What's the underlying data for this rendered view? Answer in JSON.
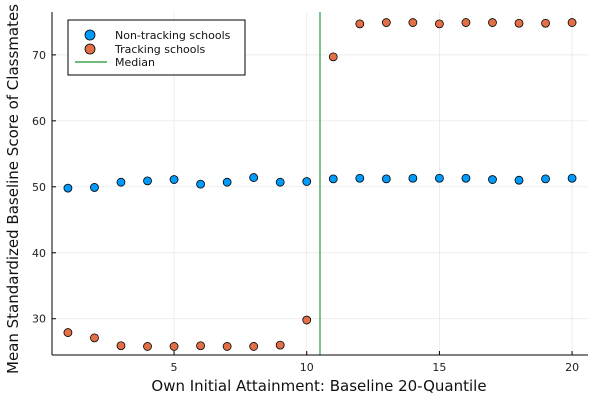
{
  "chart_data": {
    "type": "scatter",
    "title": "",
    "xlabel": "Own Initial Attainment:  Baseline 20-Quantile",
    "ylabel": "Mean Standardized Baseline Score of Classmates",
    "xlim": [
      0.4,
      20.6
    ],
    "ylim": [
      24.5,
      76.5
    ],
    "xticks": [
      5,
      10,
      15,
      20
    ],
    "yticks": [
      30,
      40,
      50,
      60,
      70
    ],
    "grid": true,
    "legend_position": "top-left",
    "series": [
      {
        "name": "Non-tracking schools",
        "color": "#009AFA",
        "x": [
          1,
          2,
          3,
          4,
          5,
          6,
          7,
          8,
          9,
          10,
          11,
          12,
          13,
          14,
          15,
          16,
          17,
          18,
          19,
          20
        ],
        "y": [
          49.8,
          49.9,
          50.7,
          50.9,
          51.1,
          50.4,
          50.7,
          51.4,
          50.7,
          50.8,
          51.2,
          51.3,
          51.2,
          51.3,
          51.3,
          51.3,
          51.1,
          51.0,
          51.2,
          51.3
        ]
      },
      {
        "name": "Tracking schools",
        "color": "#E26F46",
        "x": [
          1,
          2,
          3,
          4,
          5,
          6,
          7,
          8,
          9,
          10,
          11,
          12,
          13,
          14,
          15,
          16,
          17,
          18,
          19,
          20
        ],
        "y": [
          27.9,
          27.1,
          25.9,
          25.8,
          25.8,
          25.9,
          25.8,
          25.8,
          26.0,
          29.8,
          69.7,
          74.7,
          74.9,
          74.9,
          74.7,
          74.9,
          74.9,
          74.8,
          74.8,
          74.9
        ]
      }
    ],
    "median": {
      "name": "Median",
      "x": 10.5,
      "color": "#3DA44D"
    }
  }
}
